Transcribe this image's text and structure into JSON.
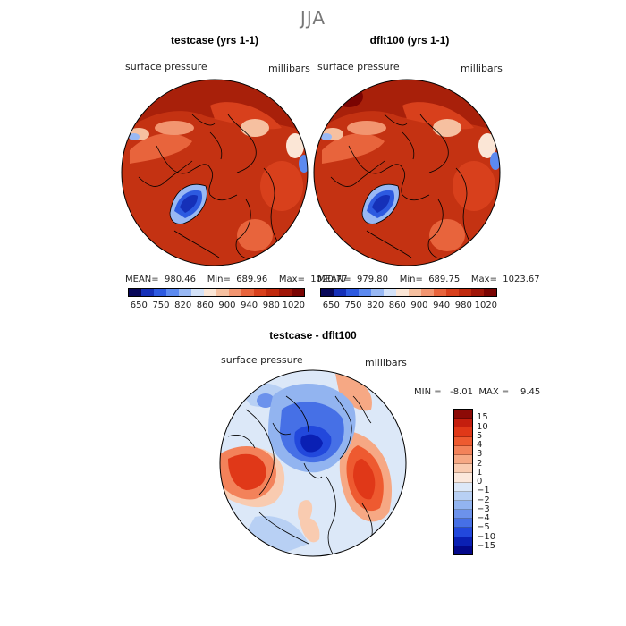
{
  "season": "JJA",
  "panels": [
    {
      "title": "testcase (yrs 1-1)",
      "left_label": "surface pressure",
      "right_label": "millibars",
      "stats": "MEAN=  980.46    Min=  689.96    Max=  1020.77"
    },
    {
      "title": "dflt100 (yrs 1-1)",
      "left_label": "surface pressure",
      "right_label": "millibars",
      "stats": "MEAN=  979.80    Min=  689.75    Max=  1023.67"
    }
  ],
  "abs_colorbar": {
    "colors": [
      "#08085a",
      "#1530b8",
      "#2d5ae0",
      "#5c8af0",
      "#98b8f4",
      "#d4e2f8",
      "#fbe6d6",
      "#f6c0a0",
      "#f29570",
      "#e8643c",
      "#d8401c",
      "#c02a0e",
      "#a01608",
      "#7a0402"
    ],
    "ticks": [
      "650",
      "750",
      "820",
      "860",
      "900",
      "940",
      "980",
      "1020"
    ]
  },
  "diff_panel": {
    "title": "testcase - dflt100",
    "left_label": "surface pressure",
    "right_label": "millibars",
    "min_max": "MIN =   -8.01  MAX =    9.45"
  },
  "diff_colorbar": {
    "colors": [
      "#8c0a06",
      "#c41e0e",
      "#e03818",
      "#ee5a30",
      "#f3825a",
      "#f6a884",
      "#f9cbb0",
      "#fbe8dc",
      "#dce8f8",
      "#b8d0f4",
      "#92b4f0",
      "#6c92ec",
      "#4670e6",
      "#2248dc",
      "#0a20b4",
      "#03088a"
    ],
    "ticks": [
      "15",
      "10",
      "5",
      "4",
      "3",
      "2",
      "1",
      "0",
      "−1",
      "−2",
      "−3",
      "−4",
      "−5",
      "−10",
      "−15"
    ]
  }
}
